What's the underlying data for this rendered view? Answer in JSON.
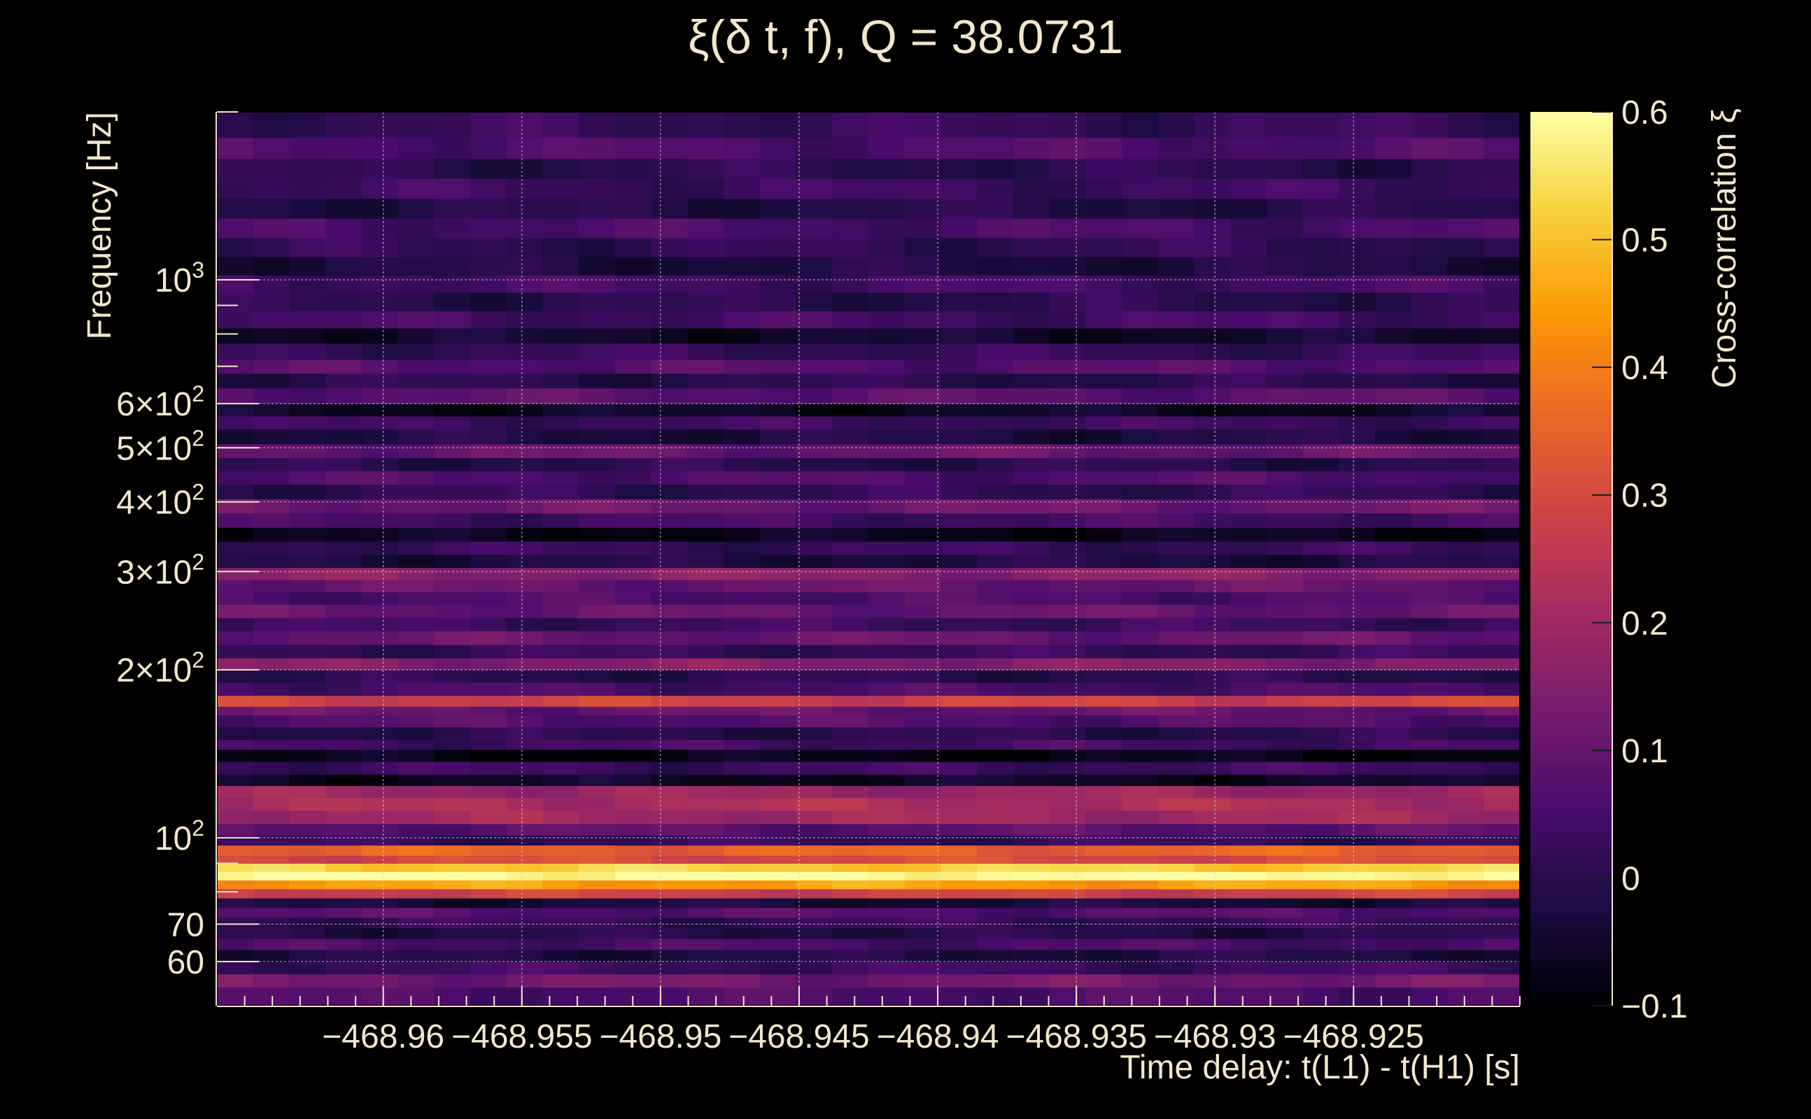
{
  "chart_data": {
    "type": "heatmap",
    "title": "ξ(δ t, f), Q = 38.0731",
    "xlabel": "Time delay: t(L1) - t(H1) [s]",
    "ylabel": "Frequency [Hz]",
    "colorbar_label": "Cross-correlation ξ",
    "xlim": [
      -468.966,
      -468.919
    ],
    "ylim": [
      50,
      2000
    ],
    "y_scale": "log",
    "grid": true,
    "x_ticks": [
      {
        "value": -468.96,
        "label": "−468.96"
      },
      {
        "value": -468.955,
        "label": "−468.955"
      },
      {
        "value": -468.95,
        "label": "−468.95"
      },
      {
        "value": -468.945,
        "label": "−468.945"
      },
      {
        "value": -468.94,
        "label": "−468.94"
      },
      {
        "value": -468.935,
        "label": "−468.935"
      },
      {
        "value": -468.93,
        "label": "−468.93"
      },
      {
        "value": -468.925,
        "label": "−468.925"
      }
    ],
    "y_ticks": [
      {
        "value": 60,
        "label": "60"
      },
      {
        "value": 70,
        "label": "70"
      },
      {
        "value": 100,
        "label": "10",
        "sup": "2"
      },
      {
        "value": 200,
        "label": "2×10",
        "sup": "2"
      },
      {
        "value": 300,
        "label": "3×10",
        "sup": "2"
      },
      {
        "value": 400,
        "label": "4×10",
        "sup": "2"
      },
      {
        "value": 500,
        "label": "5×10",
        "sup": "2"
      },
      {
        "value": 600,
        "label": "6×10",
        "sup": "2"
      },
      {
        "value": 1000,
        "label": "10",
        "sup": "3"
      }
    ],
    "colorbar": {
      "range": [
        -0.1,
        0.6
      ],
      "ticks": [
        {
          "value": 0.6,
          "label": "0.6"
        },
        {
          "value": 0.5,
          "label": "0.5"
        },
        {
          "value": 0.4,
          "label": "0.4"
        },
        {
          "value": 0.3,
          "label": "0.3"
        },
        {
          "value": 0.2,
          "label": "0.2"
        },
        {
          "value": 0.1,
          "label": "0.1"
        },
        {
          "value": 0,
          "label": "0"
        },
        {
          "value": -0.1,
          "label": "−0.1"
        }
      ],
      "colormap": [
        "#000004",
        "#1b0c41",
        "#4a0c6b",
        "#781c6d",
        "#a52c60",
        "#cf4446",
        "#ed6925",
        "#fb9b06",
        "#f7d13d",
        "#fcffa4"
      ]
    },
    "x_columns": 36,
    "bands": [
      {
        "f": [
          50,
          54
        ],
        "xi": 0.06
      },
      {
        "f": [
          54,
          57
        ],
        "xi": 0.12
      },
      {
        "f": [
          57,
          60
        ],
        "xi": 0.03
      },
      {
        "f": [
          60,
          63
        ],
        "xi": -0.02
      },
      {
        "f": [
          63,
          66
        ],
        "xi": 0.05
      },
      {
        "f": [
          66,
          69
        ],
        "xi": -0.01
      },
      {
        "f": [
          69,
          72
        ],
        "xi": 0.02
      },
      {
        "f": [
          72,
          75
        ],
        "xi": 0.07
      },
      {
        "f": [
          75,
          78
        ],
        "xi": -0.03
      },
      {
        "f": [
          78,
          81
        ],
        "xi": 0.28
      },
      {
        "f": [
          81,
          84
        ],
        "xi": 0.45
      },
      {
        "f": [
          84,
          87
        ],
        "xi": 0.6
      },
      {
        "f": [
          87,
          90
        ],
        "xi": 0.52
      },
      {
        "f": [
          90,
          93
        ],
        "xi": 0.3
      },
      {
        "f": [
          93,
          97
        ],
        "xi": 0.35
      },
      {
        "f": [
          97,
          101
        ],
        "xi": 0.02
      },
      {
        "f": [
          101,
          106
        ],
        "xi": 0.08
      },
      {
        "f": [
          106,
          112
        ],
        "xi": 0.2
      },
      {
        "f": [
          112,
          118
        ],
        "xi": 0.22
      },
      {
        "f": [
          118,
          124
        ],
        "xi": 0.19
      },
      {
        "f": [
          124,
          130
        ],
        "xi": -0.06
      },
      {
        "f": [
          130,
          137
        ],
        "xi": 0.03
      },
      {
        "f": [
          137,
          144
        ],
        "xi": -0.08
      },
      {
        "f": [
          144,
          150
        ],
        "xi": 0.04
      },
      {
        "f": [
          150,
          158
        ],
        "xi": 0.0
      },
      {
        "f": [
          158,
          166
        ],
        "xi": 0.07
      },
      {
        "f": [
          166,
          172
        ],
        "xi": 0.1
      },
      {
        "f": [
          172,
          180
        ],
        "xi": 0.28
      },
      {
        "f": [
          180,
          190
        ],
        "xi": 0.05
      },
      {
        "f": [
          190,
          200
        ],
        "xi": 0.0
      },
      {
        "f": [
          200,
          210
        ],
        "xi": 0.15
      },
      {
        "f": [
          210,
          222
        ],
        "xi": 0.02
      },
      {
        "f": [
          222,
          235
        ],
        "xi": 0.1
      },
      {
        "f": [
          235,
          248
        ],
        "xi": 0.03
      },
      {
        "f": [
          248,
          262
        ],
        "xi": 0.1
      },
      {
        "f": [
          262,
          276
        ],
        "xi": 0.06
      },
      {
        "f": [
          276,
          290
        ],
        "xi": 0.1
      },
      {
        "f": [
          290,
          305
        ],
        "xi": 0.16
      },
      {
        "f": [
          305,
          322
        ],
        "xi": -0.02
      },
      {
        "f": [
          322,
          340
        ],
        "xi": 0.02
      },
      {
        "f": [
          340,
          360
        ],
        "xi": -0.07
      },
      {
        "f": [
          360,
          382
        ],
        "xi": 0.04
      },
      {
        "f": [
          382,
          405
        ],
        "xi": 0.11
      },
      {
        "f": [
          405,
          430
        ],
        "xi": 0.01
      },
      {
        "f": [
          430,
          455
        ],
        "xi": 0.06
      },
      {
        "f": [
          455,
          480
        ],
        "xi": 0.0
      },
      {
        "f": [
          480,
          508
        ],
        "xi": 0.1
      },
      {
        "f": [
          508,
          540
        ],
        "xi": -0.02
      },
      {
        "f": [
          540,
          570
        ],
        "xi": 0.03
      },
      {
        "f": [
          570,
          600
        ],
        "xi": -0.06
      },
      {
        "f": [
          600,
          640
        ],
        "xi": 0.08
      },
      {
        "f": [
          640,
          680
        ],
        "xi": 0.0
      },
      {
        "f": [
          680,
          720
        ],
        "xi": 0.07
      },
      {
        "f": [
          720,
          770
        ],
        "xi": 0.02
      },
      {
        "f": [
          770,
          820
        ],
        "xi": -0.05
      },
      {
        "f": [
          820,
          880
        ],
        "xi": 0.04
      },
      {
        "f": [
          880,
          950
        ],
        "xi": 0.0
      },
      {
        "f": [
          950,
          1020
        ],
        "xi": 0.04
      },
      {
        "f": [
          1020,
          1100
        ],
        "xi": -0.02
      },
      {
        "f": [
          1100,
          1190
        ],
        "xi": 0.01
      },
      {
        "f": [
          1190,
          1290
        ],
        "xi": 0.05
      },
      {
        "f": [
          1290,
          1400
        ],
        "xi": -0.01
      },
      {
        "f": [
          1400,
          1520
        ],
        "xi": 0.03
      },
      {
        "f": [
          1520,
          1650
        ],
        "xi": 0.0
      },
      {
        "f": [
          1650,
          1800
        ],
        "xi": 0.06
      },
      {
        "f": [
          1800,
          2000
        ],
        "xi": 0.02
      }
    ]
  }
}
